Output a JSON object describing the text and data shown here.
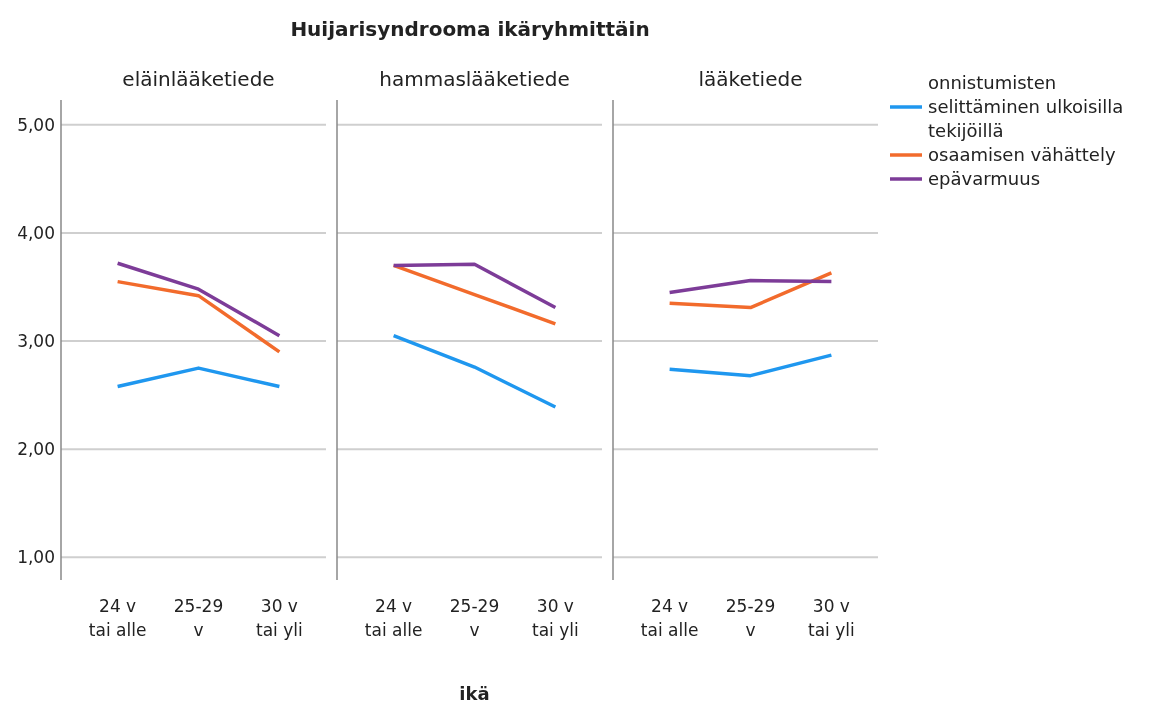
{
  "chart_data": [
    {
      "type": "line",
      "title": "eläinlääketiede",
      "annotations": [
        "Huijarisyndrooma ikäryhmittäin"
      ],
      "categories": [
        "24 v\ntai alle",
        "25-29\nv",
        "30 v\ntai yli"
      ],
      "ylim": [
        0.79,
        5.23
      ],
      "yticks": [
        {
          "value": 1,
          "label": "1,00"
        },
        {
          "value": 2,
          "label": "2,00"
        },
        {
          "value": 3,
          "label": "3,00"
        },
        {
          "value": 4,
          "label": "4,00"
        },
        {
          "value": 5,
          "label": "5,00"
        }
      ],
      "grid": "y",
      "series": [
        {
          "color": "#1f97ef",
          "values": [
            2.58,
            2.75,
            2.58
          ]
        },
        {
          "color": "#f26b2c",
          "values": [
            3.55,
            3.42,
            2.9
          ]
        },
        {
          "color": "#7d3c98",
          "values": [
            3.72,
            3.48,
            3.05
          ]
        }
      ]
    },
    {
      "type": "line",
      "title": "hammaslääketiede",
      "xlabel": "ikä",
      "categories": [
        "24 v\ntai alle",
        "25-29\nv",
        "30 v\ntai yli"
      ],
      "ylim": [
        0.79,
        5.23
      ],
      "yticks": [
        {
          "value": 1,
          "label": null
        },
        {
          "value": 2,
          "label": null
        },
        {
          "value": 3,
          "label": null
        },
        {
          "value": 4,
          "label": null
        },
        {
          "value": 5,
          "label": null
        }
      ],
      "grid": "y",
      "tick_labels": "x",
      "series": [
        {
          "color": "#1f97ef",
          "values": [
            3.05,
            2.76,
            2.39
          ]
        },
        {
          "color": "#f26b2c",
          "values": [
            3.7,
            3.43,
            3.16
          ]
        },
        {
          "color": "#7d3c98",
          "values": [
            3.7,
            3.71,
            3.31
          ]
        }
      ]
    },
    {
      "type": "line",
      "title": "lääketiede",
      "categories": [
        "24 v\ntai alle",
        "25-29\nv",
        "30 v\ntai yli"
      ],
      "ylim": [
        0.79,
        5.23
      ],
      "yticks": [
        {
          "value": 1,
          "label": null
        },
        {
          "value": 2,
          "label": null
        },
        {
          "value": 3,
          "label": null
        },
        {
          "value": 4,
          "label": null
        },
        {
          "value": 5,
          "label": null
        }
      ],
      "grid": "y",
      "tick_labels": "x",
      "legend": "right",
      "series": [
        {
          "name": "onnistumisten selittäminen ulkoisilla tekijöillä",
          "color": "#1f97ef",
          "values": [
            2.74,
            2.68,
            2.87
          ]
        },
        {
          "name": "osaamisen vähättely",
          "color": "#f26b2c",
          "values": [
            3.35,
            3.31,
            3.63
          ]
        },
        {
          "name": "epävarmuus",
          "color": "#7d3c98",
          "values": [
            3.45,
            3.56,
            3.55
          ]
        }
      ]
    }
  ]
}
